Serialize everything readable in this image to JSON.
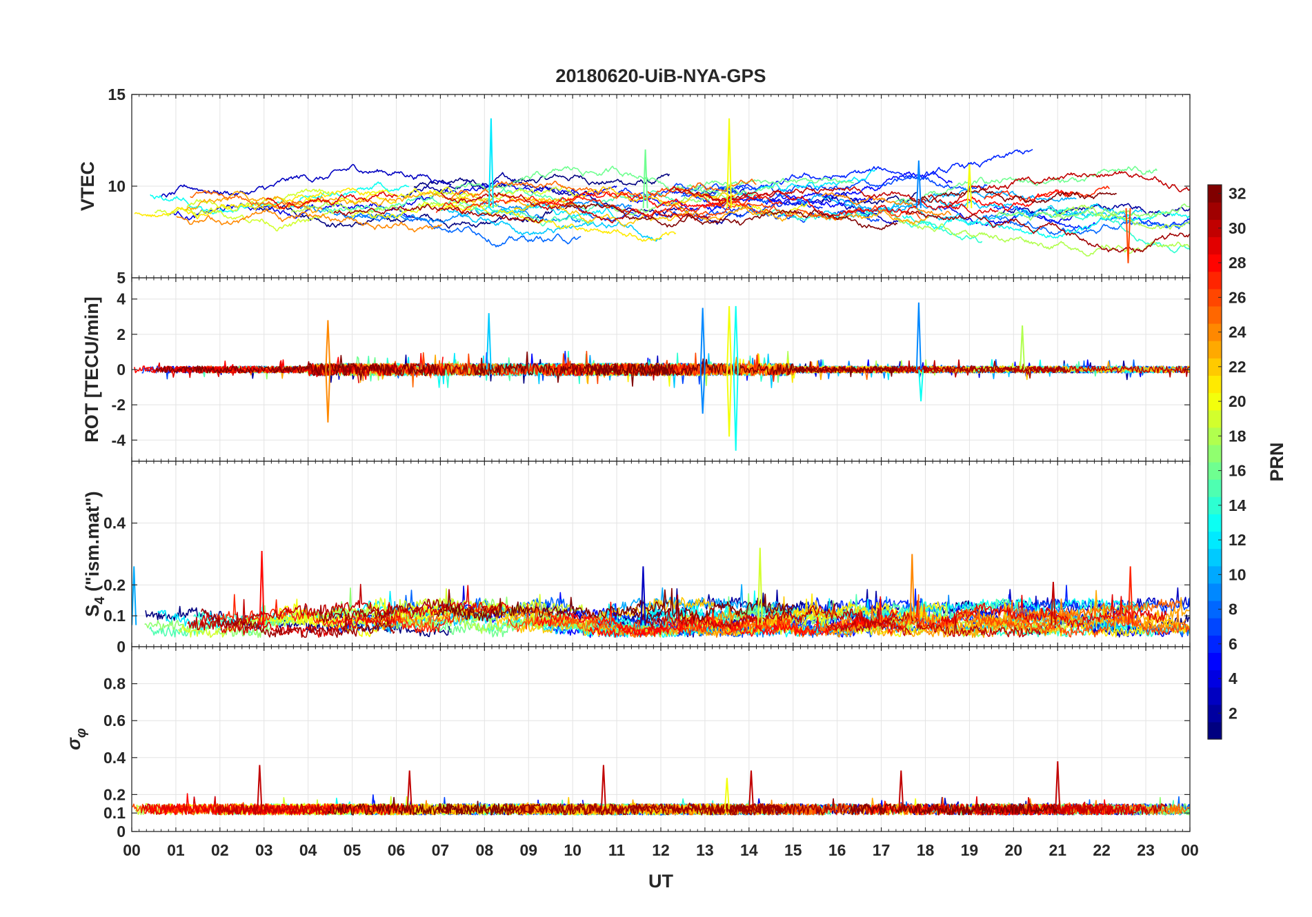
{
  "chart_data": {
    "type": "line",
    "title": "20180620-UiB-NYA-GPS",
    "xlabel": "UT",
    "x_tick_labels": [
      "00",
      "01",
      "02",
      "03",
      "04",
      "05",
      "06",
      "07",
      "08",
      "09",
      "10",
      "11",
      "12",
      "13",
      "14",
      "15",
      "16",
      "17",
      "18",
      "19",
      "20",
      "21",
      "22",
      "23",
      "00"
    ],
    "xlim": [
      0,
      24
    ],
    "grid": true,
    "series_count": 32,
    "series_note": "one line per GPS PRN 1-32, colored by PRN (jet colormap)",
    "colorbar": {
      "label": "PRN",
      "range": [
        1,
        32
      ],
      "tick_labels": [
        "2",
        "4",
        "6",
        "8",
        "10",
        "12",
        "14",
        "16",
        "18",
        "20",
        "22",
        "24",
        "26",
        "28",
        "30",
        "32"
      ],
      "colormap": "jet",
      "position": "right"
    },
    "panels": [
      {
        "id": "vtec",
        "ylabel": "VTEC",
        "ylim": [
          5,
          15
        ],
        "y_ticks": [
          5,
          10,
          15
        ],
        "y_tick_labels": [
          "5",
          "10",
          "15"
        ],
        "baseline": 8.8,
        "noise": 1.4,
        "spikes": [
          {
            "t": 8.15,
            "v": 13.7,
            "prn": 12
          },
          {
            "t": 13.55,
            "v": 13.7,
            "prn": 20
          },
          {
            "t": 17.85,
            "v": 11.4,
            "prn": 9
          },
          {
            "t": 19.0,
            "v": 11.2,
            "prn": 20
          },
          {
            "t": 11.65,
            "v": 12.0,
            "prn": 16
          },
          {
            "t": 22.6,
            "v": 5.8,
            "prn": 26
          }
        ]
      },
      {
        "id": "rot",
        "ylabel": "ROT [TECU/min]",
        "ylim": [
          -5.2,
          5.2
        ],
        "y_ticks": [
          -4,
          -2,
          0,
          2,
          4
        ],
        "y_tick_labels": [
          "-4",
          "-2",
          "0",
          "2",
          "4"
        ],
        "baseline": 0,
        "noise": 0.35,
        "spikes": [
          {
            "t": 4.45,
            "v": 2.8,
            "prn": 24
          },
          {
            "t": 4.45,
            "v": -3.0,
            "prn": 24
          },
          {
            "t": 8.1,
            "v": 3.2,
            "prn": 11
          },
          {
            "t": 12.95,
            "v": 3.5,
            "prn": 9
          },
          {
            "t": 12.95,
            "v": -2.5,
            "prn": 9
          },
          {
            "t": 13.55,
            "v": 3.6,
            "prn": 20
          },
          {
            "t": 13.55,
            "v": -3.8,
            "prn": 20
          },
          {
            "t": 13.7,
            "v": 3.6,
            "prn": 13
          },
          {
            "t": 13.7,
            "v": -4.6,
            "prn": 13
          },
          {
            "t": 17.85,
            "v": 3.8,
            "prn": 9
          },
          {
            "t": 17.9,
            "v": -1.8,
            "prn": 13
          },
          {
            "t": 20.2,
            "v": 2.5,
            "prn": 18
          }
        ]
      },
      {
        "id": "s4",
        "ylabel": "S4 (\"ism.mat\")",
        "ylabel_main": "S",
        "ylabel_sub": "4",
        "ylabel_rest": " (\"ism.mat\")",
        "ylim": [
          0,
          0.6
        ],
        "y_ticks": [
          0,
          0.1,
          0.2,
          0.4
        ],
        "y_tick_labels": [
          "0",
          "0.1",
          "0.2",
          "0.4"
        ],
        "baseline": 0.07,
        "noise": 0.05,
        "spikes": [
          {
            "t": 2.95,
            "v": 0.31,
            "prn": 28
          },
          {
            "t": 14.25,
            "v": 0.32,
            "prn": 19
          },
          {
            "t": 17.7,
            "v": 0.3,
            "prn": 24
          },
          {
            "t": 11.6,
            "v": 0.26,
            "prn": 3
          },
          {
            "t": 22.65,
            "v": 0.26,
            "prn": 27
          },
          {
            "t": 0.05,
            "v": 0.26,
            "prn": 10
          },
          {
            "t": 20.9,
            "v": 0.21,
            "prn": 30
          }
        ]
      },
      {
        "id": "sigma_phi",
        "ylabel": "σφ",
        "ylabel_main": "σ",
        "ylabel_sub": "φ",
        "ylim": [
          0,
          1.0
        ],
        "y_ticks": [
          0,
          0.1,
          0.2,
          0.4,
          0.6,
          0.8
        ],
        "y_tick_labels": [
          "0",
          "0.1",
          "0.2",
          "0.4",
          "0.6",
          "0.8"
        ],
        "baseline": 0.12,
        "noise": 0.03,
        "spikes": [
          {
            "t": 2.9,
            "v": 0.36,
            "prn": 30
          },
          {
            "t": 6.3,
            "v": 0.33,
            "prn": 30
          },
          {
            "t": 10.7,
            "v": 0.36,
            "prn": 30
          },
          {
            "t": 13.5,
            "v": 0.29,
            "prn": 20
          },
          {
            "t": 14.05,
            "v": 0.33,
            "prn": 30
          },
          {
            "t": 17.45,
            "v": 0.33,
            "prn": 30
          },
          {
            "t": 21.0,
            "v": 0.38,
            "prn": 30
          }
        ]
      }
    ]
  }
}
